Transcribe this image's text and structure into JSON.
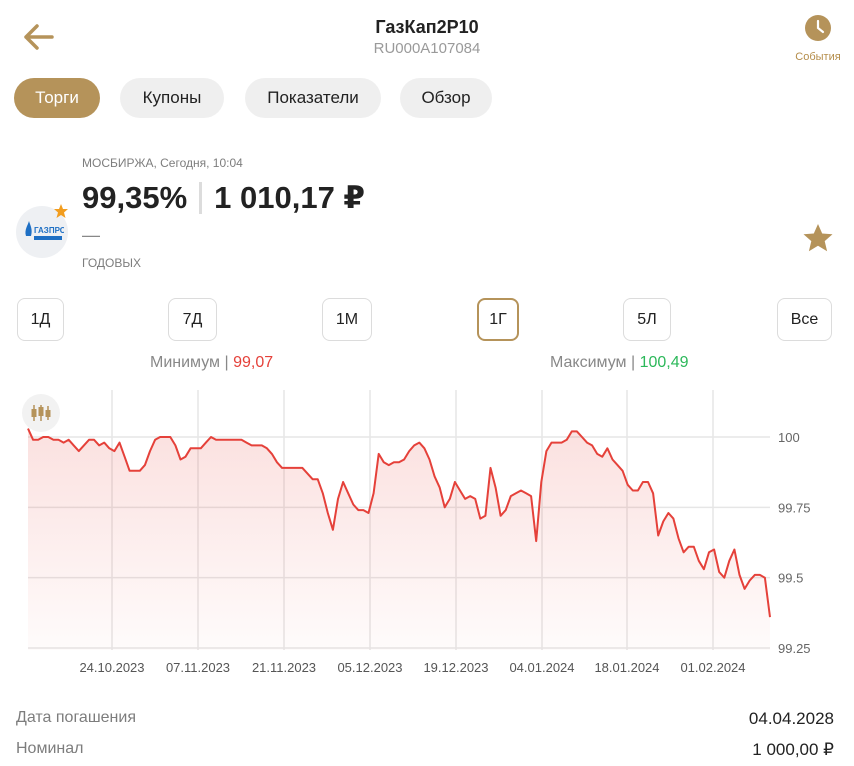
{
  "header": {
    "title": "ГазКап2Р10",
    "subtitle": "RU000A107084",
    "events_label": "События",
    "back_icon": "arrow-left-icon",
    "events_icon": "clock-icon"
  },
  "tabs": [
    {
      "label": "Торги",
      "active": true
    },
    {
      "label": "Купоны",
      "active": false
    },
    {
      "label": "Показатели",
      "active": false
    },
    {
      "label": "Обзор",
      "active": false
    }
  ],
  "quote": {
    "source": "МОСБИРЖА, Сегодня, 10:04",
    "price_percent": "99,35%",
    "price_rub": "1 010,17 ₽",
    "change": "—",
    "yield_label": "ГОДОВЫХ",
    "logo_text": "ГАЗПРОМ"
  },
  "periods": [
    {
      "label": "1Д",
      "active": false
    },
    {
      "label": "7Д",
      "active": false
    },
    {
      "label": "1М",
      "active": false
    },
    {
      "label": "1Г",
      "active": true
    },
    {
      "label": "5Л",
      "active": false
    },
    {
      "label": "Все",
      "active": false
    }
  ],
  "stats": {
    "min_label": "Минимум",
    "min_value": "99,07",
    "max_label": "Максимум",
    "max_value": "100,49"
  },
  "colors": {
    "accent": "#b5935a",
    "line": "#e5413a",
    "max": "#2cb85a"
  },
  "chart_data": {
    "type": "area",
    "y_ticks": [
      "100",
      "99.75",
      "99.5",
      "99.25"
    ],
    "ylim": [
      99.25,
      100.05
    ],
    "x_tick_labels": [
      "24.10.2023",
      "07.11.2023",
      "21.11.2023",
      "05.12.2023",
      "19.12.2023",
      "04.01.2024",
      "18.01.2024",
      "01.02.2024"
    ],
    "grid": true,
    "values": [
      100.03,
      99.99,
      99.99,
      100.0,
      100.0,
      99.99,
      99.99,
      99.98,
      99.99,
      99.97,
      99.95,
      99.97,
      99.99,
      99.99,
      99.97,
      99.98,
      99.96,
      99.95,
      99.98,
      99.93,
      99.88,
      99.88,
      99.88,
      99.9,
      99.95,
      99.99,
      100.0,
      100.0,
      100.0,
      99.97,
      99.92,
      99.93,
      99.96,
      99.96,
      99.96,
      99.98,
      100.0,
      99.99,
      99.99,
      99.99,
      99.99,
      99.99,
      99.99,
      99.98,
      99.97,
      99.97,
      99.97,
      99.96,
      99.94,
      99.91,
      99.89,
      99.89,
      99.89,
      99.89,
      99.89,
      99.87,
      99.85,
      99.85,
      99.8,
      99.73,
      99.67,
      99.78,
      99.84,
      99.8,
      99.76,
      99.74,
      99.74,
      99.73,
      99.8,
      99.94,
      99.91,
      99.9,
      99.91,
      99.91,
      99.92,
      99.95,
      99.97,
      99.98,
      99.96,
      99.92,
      99.86,
      99.82,
      99.75,
      99.78,
      99.84,
      99.81,
      99.78,
      99.79,
      99.78,
      99.71,
      99.72,
      99.89,
      99.82,
      99.72,
      99.74,
      99.79,
      99.8,
      99.81,
      99.8,
      99.79,
      99.63,
      99.84,
      99.95,
      99.98,
      99.98,
      99.98,
      99.99,
      100.02,
      100.02,
      100.0,
      99.98,
      99.97,
      99.94,
      99.93,
      99.96,
      99.92,
      99.9,
      99.88,
      99.83,
      99.81,
      99.81,
      99.84,
      99.84,
      99.8,
      99.65,
      99.7,
      99.73,
      99.71,
      99.64,
      99.59,
      99.61,
      99.61,
      99.56,
      99.53,
      99.59,
      99.6,
      99.52,
      99.5,
      99.56,
      99.6,
      99.51,
      99.46,
      99.49,
      99.51,
      99.51,
      99.5,
      99.36
    ]
  },
  "details": [
    {
      "label": "Дата погашения",
      "value": "04.04.2028"
    },
    {
      "label": "Номинал",
      "value": "1 000,00 ₽"
    }
  ]
}
